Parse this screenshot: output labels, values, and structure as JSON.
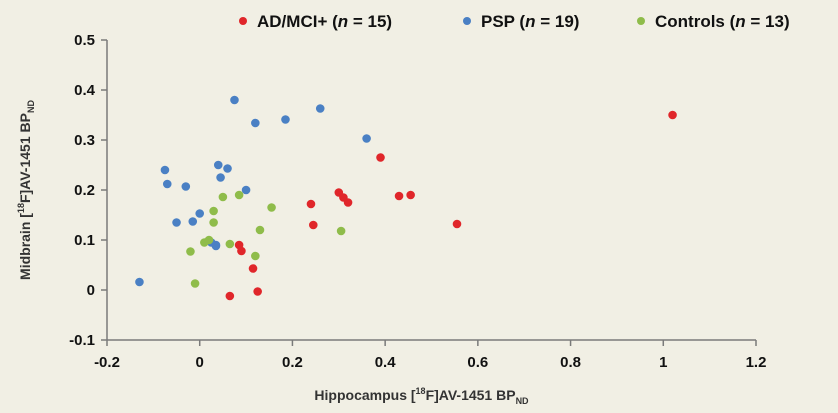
{
  "chart_data": {
    "type": "scatter",
    "xlabel": {
      "prefix": "Hippocampus [",
      "sup": "18",
      "mid": "F]AV-1451 BP",
      "sub": "ND"
    },
    "ylabel": {
      "prefix": "Midbrain [",
      "sup": "18",
      "mid": "F]AV-1451 BP",
      "sub": "ND"
    },
    "xlim": [
      -0.2,
      1.2
    ],
    "ylim": [
      -0.1,
      0.5
    ],
    "x_ticks": [
      "-0.2",
      "0",
      "0.2",
      "0.4",
      "0.6",
      "0.8",
      "1",
      "1.2"
    ],
    "y_ticks": [
      "0.5",
      "0.4",
      "0.3",
      "0.2",
      "0.1",
      "0",
      "-0.1"
    ],
    "legend_position": "top",
    "grid": false,
    "series": [
      {
        "name": "AD/MCI+",
        "n_label": "n",
        "n_value": " = 15)",
        "color": "#e0262a",
        "points": [
          [
            1.02,
            0.35
          ],
          [
            0.39,
            0.265
          ],
          [
            0.3,
            0.195
          ],
          [
            0.31,
            0.185
          ],
          [
            0.32,
            0.175
          ],
          [
            0.43,
            0.188
          ],
          [
            0.455,
            0.19
          ],
          [
            0.24,
            0.172
          ],
          [
            0.245,
            0.13
          ],
          [
            0.555,
            0.132
          ],
          [
            0.09,
            0.078
          ],
          [
            0.115,
            0.043
          ],
          [
            0.065,
            -0.012
          ],
          [
            0.125,
            -0.003
          ],
          [
            0.085,
            0.09
          ]
        ]
      },
      {
        "name": "PSP",
        "n_label": "n",
        "n_value": " = 19)",
        "color": "#4a80c4",
        "points": [
          [
            0.075,
            0.38
          ],
          [
            0.26,
            0.363
          ],
          [
            0.185,
            0.341
          ],
          [
            0.12,
            0.334
          ],
          [
            0.36,
            0.303
          ],
          [
            -0.075,
            0.24
          ],
          [
            0.04,
            0.25
          ],
          [
            0.06,
            0.243
          ],
          [
            0.045,
            0.225
          ],
          [
            -0.07,
            0.212
          ],
          [
            -0.03,
            0.207
          ],
          [
            0.1,
            0.2
          ],
          [
            0.0,
            0.153
          ],
          [
            -0.05,
            0.135
          ],
          [
            -0.015,
            0.137
          ],
          [
            0.035,
            0.088
          ],
          [
            -0.13,
            0.016
          ],
          [
            0.025,
            0.095
          ],
          [
            0.035,
            0.09
          ]
        ]
      },
      {
        "name": "Controls",
        "n_label": "n",
        "n_value": " = 13)",
        "color": "#8fbc4a",
        "points": [
          [
            0.155,
            0.165
          ],
          [
            0.085,
            0.19
          ],
          [
            0.05,
            0.186
          ],
          [
            0.03,
            0.158
          ],
          [
            0.03,
            0.135
          ],
          [
            0.13,
            0.12
          ],
          [
            0.305,
            0.118
          ],
          [
            0.01,
            0.095
          ],
          [
            0.065,
            0.092
          ],
          [
            -0.02,
            0.077
          ],
          [
            0.12,
            0.068
          ],
          [
            -0.01,
            0.013
          ],
          [
            0.02,
            0.1
          ]
        ]
      }
    ]
  }
}
